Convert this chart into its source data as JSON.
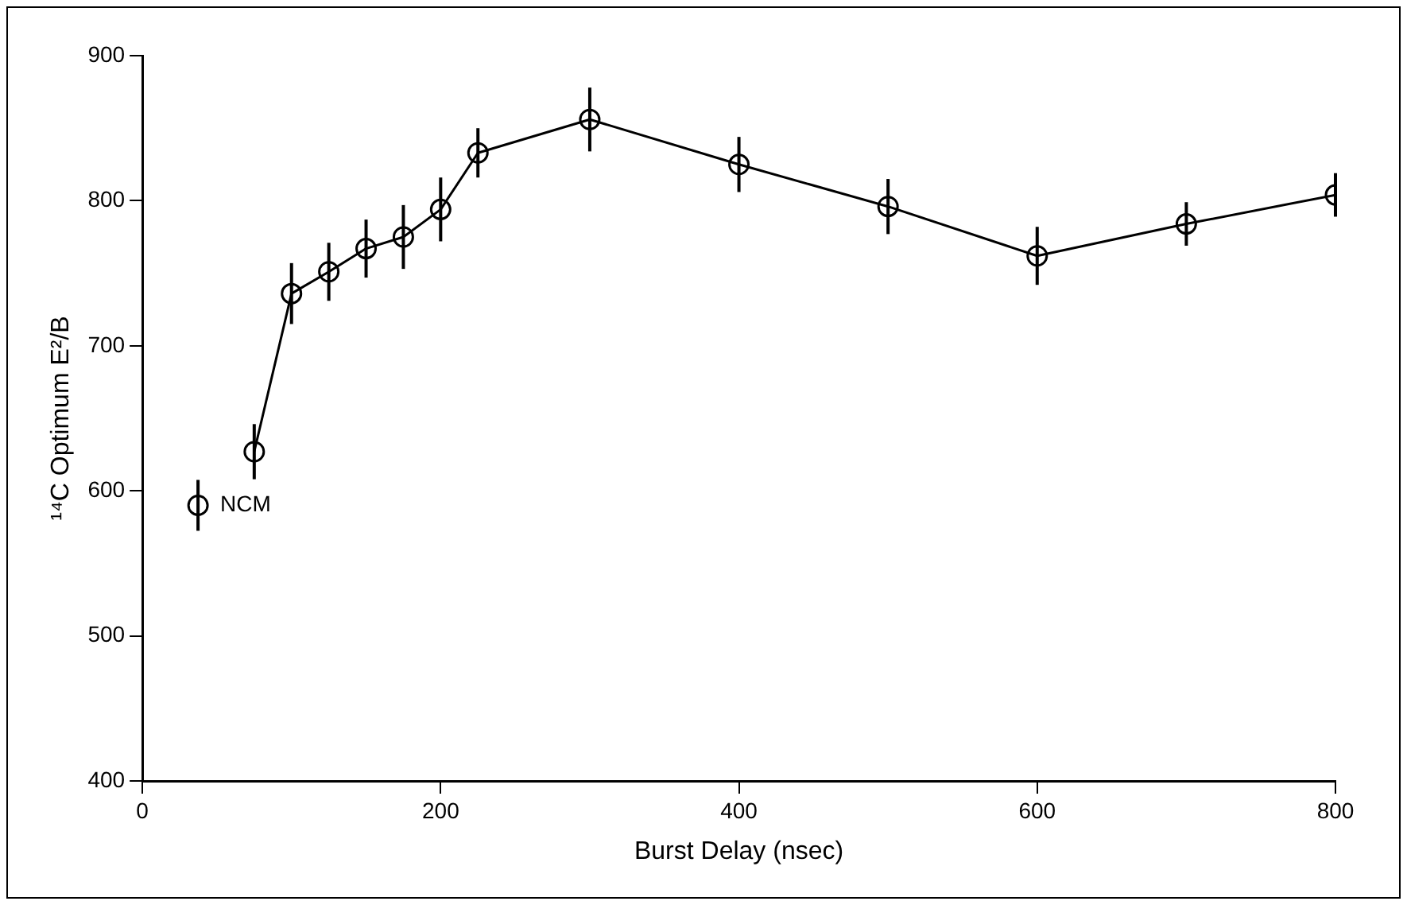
{
  "chart_data": {
    "type": "line",
    "xlabel": "Burst Delay (nsec)",
    "ylabel": "¹⁴C Optimum E²/B",
    "x": [
      75,
      100,
      125,
      150,
      175,
      200,
      225,
      300,
      400,
      500,
      600,
      700,
      800
    ],
    "series": [
      {
        "name": "NCM",
        "color": "#000000",
        "values": [
          627,
          736,
          751,
          767,
          775,
          794,
          833,
          856,
          825,
          796,
          762,
          784,
          804
        ],
        "errors": [
          19,
          21,
          20,
          20,
          22,
          22,
          17,
          22,
          19,
          19,
          20,
          15,
          15
        ]
      }
    ],
    "xlim": [
      0,
      800
    ],
    "xticks": [
      0,
      200,
      400,
      600,
      800
    ],
    "ylim": [
      400,
      900
    ],
    "yticks": [
      400,
      500,
      600,
      700,
      800,
      900
    ],
    "grid": false,
    "legend": "left",
    "marker": "circle",
    "line_style": "solid"
  }
}
